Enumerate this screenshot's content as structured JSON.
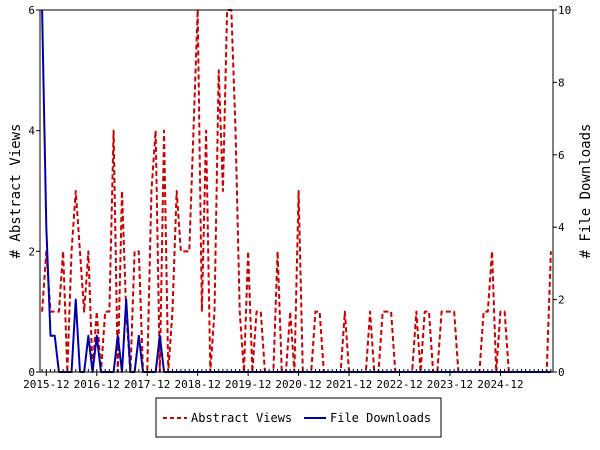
{
  "chart_data": {
    "type": "line",
    "x": [
      "2015-11",
      "2015-12",
      "2016-01",
      "2016-02",
      "2016-03",
      "2016-04",
      "2016-05",
      "2016-06",
      "2016-07",
      "2016-08",
      "2016-09",
      "2016-10",
      "2016-11",
      "2016-12",
      "2017-01",
      "2017-02",
      "2017-03",
      "2017-04",
      "2017-05",
      "2017-06",
      "2017-07",
      "2017-08",
      "2017-09",
      "2017-10",
      "2017-11",
      "2017-12",
      "2018-01",
      "2018-02",
      "2018-03",
      "2018-04",
      "2018-05",
      "2018-06",
      "2018-07",
      "2018-08",
      "2018-09",
      "2018-10",
      "2018-11",
      "2018-12",
      "2019-01",
      "2019-02",
      "2019-03",
      "2019-04",
      "2019-05",
      "2019-06",
      "2019-07",
      "2019-08",
      "2019-09",
      "2019-10",
      "2019-11",
      "2019-12",
      "2020-01",
      "2020-02",
      "2020-03",
      "2020-04",
      "2020-05",
      "2020-06",
      "2020-07",
      "2020-08",
      "2020-09",
      "2020-10",
      "2020-11",
      "2020-12",
      "2021-01",
      "2021-02",
      "2021-03",
      "2021-04",
      "2021-05",
      "2021-06",
      "2021-07",
      "2021-08",
      "2021-09",
      "2021-10",
      "2021-11",
      "2021-12",
      "2022-01",
      "2022-02",
      "2022-03",
      "2022-04",
      "2022-05",
      "2022-06",
      "2022-07",
      "2022-08",
      "2022-09",
      "2022-10",
      "2022-11",
      "2022-12",
      "2023-01",
      "2023-02",
      "2023-03",
      "2023-04",
      "2023-05",
      "2023-06",
      "2023-07",
      "2023-08",
      "2023-09",
      "2023-10",
      "2023-11",
      "2023-12",
      "2024-01",
      "2024-02",
      "2024-03",
      "2024-04",
      "2024-05",
      "2024-06",
      "2024-07",
      "2024-08",
      "2024-09",
      "2024-10",
      "2024-11",
      "2024-12",
      "2025-01",
      "2025-02",
      "2025-03",
      "2025-04",
      "2025-05",
      "2025-06",
      "2025-07",
      "2025-08",
      "2025-09",
      "2025-10",
      "2025-11",
      "2025-12"
    ],
    "x_tick_labels": [
      "2015-12",
      "2016-12",
      "2017-12",
      "2018-12",
      "2019-12",
      "2020-12",
      "2021-12",
      "2022-12",
      "2023-12",
      "2024-12"
    ],
    "series": [
      {
        "name": "Abstract Views",
        "axis": "left",
        "color": "#cc0000",
        "style": "dashed",
        "values": [
          1,
          2,
          1,
          1,
          1,
          2,
          0,
          2,
          3,
          2,
          1,
          2,
          0,
          1,
          0,
          1,
          1,
          4,
          0,
          3,
          1,
          0,
          2,
          2,
          0,
          0,
          3,
          4,
          0,
          4,
          0,
          1,
          3,
          2,
          2,
          2,
          4,
          6,
          1,
          4,
          0,
          1,
          5,
          3,
          6,
          6,
          4,
          1,
          0,
          2,
          0,
          1,
          1,
          0,
          0,
          0,
          2,
          0,
          0,
          1,
          0,
          3,
          0,
          0,
          0,
          1,
          1,
          0,
          0,
          0,
          0,
          0,
          1,
          0,
          0,
          0,
          0,
          0,
          1,
          0,
          0,
          1,
          1,
          1,
          0,
          0,
          0,
          0,
          0,
          1,
          0,
          1,
          1,
          0,
          0,
          1,
          1,
          1,
          1,
          0,
          0,
          0,
          0,
          0,
          0,
          1,
          1,
          2,
          0,
          1,
          1,
          0,
          0,
          0,
          0,
          0,
          0,
          0,
          0,
          0,
          0,
          2
        ],
        "y_range": [
          0,
          6
        ]
      },
      {
        "name": "File Downloads",
        "axis": "right",
        "color": "#0000aa",
        "style": "solid",
        "values": [
          10,
          4,
          1,
          1,
          0,
          0,
          0,
          0,
          2,
          0,
          0,
          1,
          0,
          1,
          0,
          0,
          0,
          0,
          1,
          0,
          2,
          0,
          0,
          1,
          0,
          0,
          0,
          0,
          1,
          0,
          0,
          0,
          0,
          0,
          0,
          0,
          0,
          0,
          0,
          0,
          0,
          0,
          0,
          0,
          0,
          0,
          0,
          0,
          0,
          0,
          0,
          0,
          0,
          0,
          0,
          0,
          0,
          0,
          0,
          0,
          0,
          0,
          0,
          0,
          0,
          0,
          0,
          0,
          0,
          0,
          0,
          0,
          0,
          0,
          0,
          0,
          0,
          0,
          0,
          0,
          0,
          0,
          0,
          0,
          0,
          0,
          0,
          0,
          0,
          0,
          0,
          0,
          0,
          0,
          0,
          0,
          0,
          0,
          0,
          0,
          0,
          0,
          0,
          0,
          0,
          0,
          0,
          0,
          0,
          0,
          0,
          0,
          0,
          0,
          0,
          0,
          0,
          0,
          0,
          0,
          0,
          0
        ],
        "y_range": [
          0,
          10
        ]
      }
    ],
    "ylabel_left": "# Abstract Views",
    "ylabel_right": "# File Downloads",
    "left_ticks": [
      0,
      2,
      4,
      6
    ],
    "right_ticks": [
      0,
      2,
      4,
      6,
      8,
      10
    ],
    "legend_position": "bottom-center",
    "grid": false
  }
}
